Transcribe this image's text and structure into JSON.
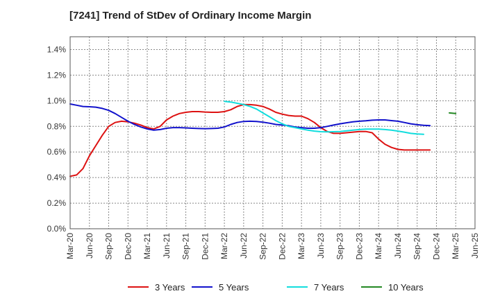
{
  "title": "[7241]  Trend of StDev of Ordinary Income Margin",
  "chart_data": {
    "type": "line",
    "title": "[7241]  Trend of StDev of Ordinary Income Margin",
    "xlabel": "",
    "ylabel": "",
    "x_ticks": [
      "Mar-20",
      "Jun-20",
      "Sep-20",
      "Dec-20",
      "Mar-21",
      "Jun-21",
      "Sep-21",
      "Dec-21",
      "Mar-22",
      "Jun-22",
      "Sep-22",
      "Dec-22",
      "Mar-23",
      "Jun-23",
      "Sep-23",
      "Dec-23",
      "Mar-24",
      "Jun-24",
      "Sep-24",
      "Dec-24",
      "Mar-25",
      "Jun-25"
    ],
    "y_ticks": [
      "0.0%",
      "0.2%",
      "0.4%",
      "0.6%",
      "0.8%",
      "1.0%",
      "1.2%",
      "1.4%"
    ],
    "ylim": [
      0,
      1.5
    ],
    "grid": true,
    "legend_position": "bottom",
    "series": [
      {
        "name": "3 Years",
        "color": "#dd1111",
        "start_month": "Mar-20",
        "values": [
          0.41,
          0.42,
          0.47,
          0.57,
          0.65,
          0.73,
          0.8,
          0.83,
          0.84,
          0.835,
          0.825,
          0.81,
          0.79,
          0.78,
          0.8,
          0.85,
          0.88,
          0.9,
          0.91,
          0.915,
          0.915,
          0.912,
          0.91,
          0.91,
          0.915,
          0.93,
          0.955,
          0.97,
          0.97,
          0.965,
          0.955,
          0.935,
          0.91,
          0.895,
          0.885,
          0.88,
          0.88,
          0.86,
          0.83,
          0.79,
          0.76,
          0.745,
          0.745,
          0.75,
          0.755,
          0.76,
          0.76,
          0.75,
          0.7,
          0.66,
          0.635,
          0.62,
          0.615,
          0.615,
          0.615,
          0.615,
          0.615
        ]
      },
      {
        "name": "5 Years",
        "color": "#1111cc",
        "start_month": "Mar-20",
        "values": [
          0.975,
          0.965,
          0.955,
          0.953,
          0.95,
          0.94,
          0.925,
          0.9,
          0.87,
          0.84,
          0.815,
          0.795,
          0.78,
          0.77,
          0.775,
          0.785,
          0.79,
          0.79,
          0.788,
          0.785,
          0.783,
          0.782,
          0.783,
          0.785,
          0.795,
          0.815,
          0.83,
          0.838,
          0.84,
          0.838,
          0.833,
          0.825,
          0.815,
          0.81,
          0.805,
          0.795,
          0.79,
          0.785,
          0.785,
          0.79,
          0.8,
          0.81,
          0.82,
          0.828,
          0.835,
          0.84,
          0.843,
          0.848,
          0.85,
          0.85,
          0.845,
          0.84,
          0.83,
          0.82,
          0.813,
          0.808,
          0.806
        ]
      },
      {
        "name": "7 Years",
        "color": "#11dddd",
        "start_month": "Mar-22",
        "values": [
          0.995,
          0.99,
          0.98,
          0.97,
          0.955,
          0.935,
          0.905,
          0.875,
          0.845,
          0.82,
          0.8,
          0.79,
          0.78,
          0.77,
          0.763,
          0.758,
          0.757,
          0.758,
          0.76,
          0.765,
          0.77,
          0.775,
          0.778,
          0.778,
          0.778,
          0.775,
          0.77,
          0.763,
          0.755,
          0.745,
          0.74,
          0.738
        ]
      },
      {
        "name": "10 Years",
        "color": "#228822",
        "start_month": "Feb-25",
        "values": [
          0.905,
          0.9
        ]
      }
    ]
  }
}
